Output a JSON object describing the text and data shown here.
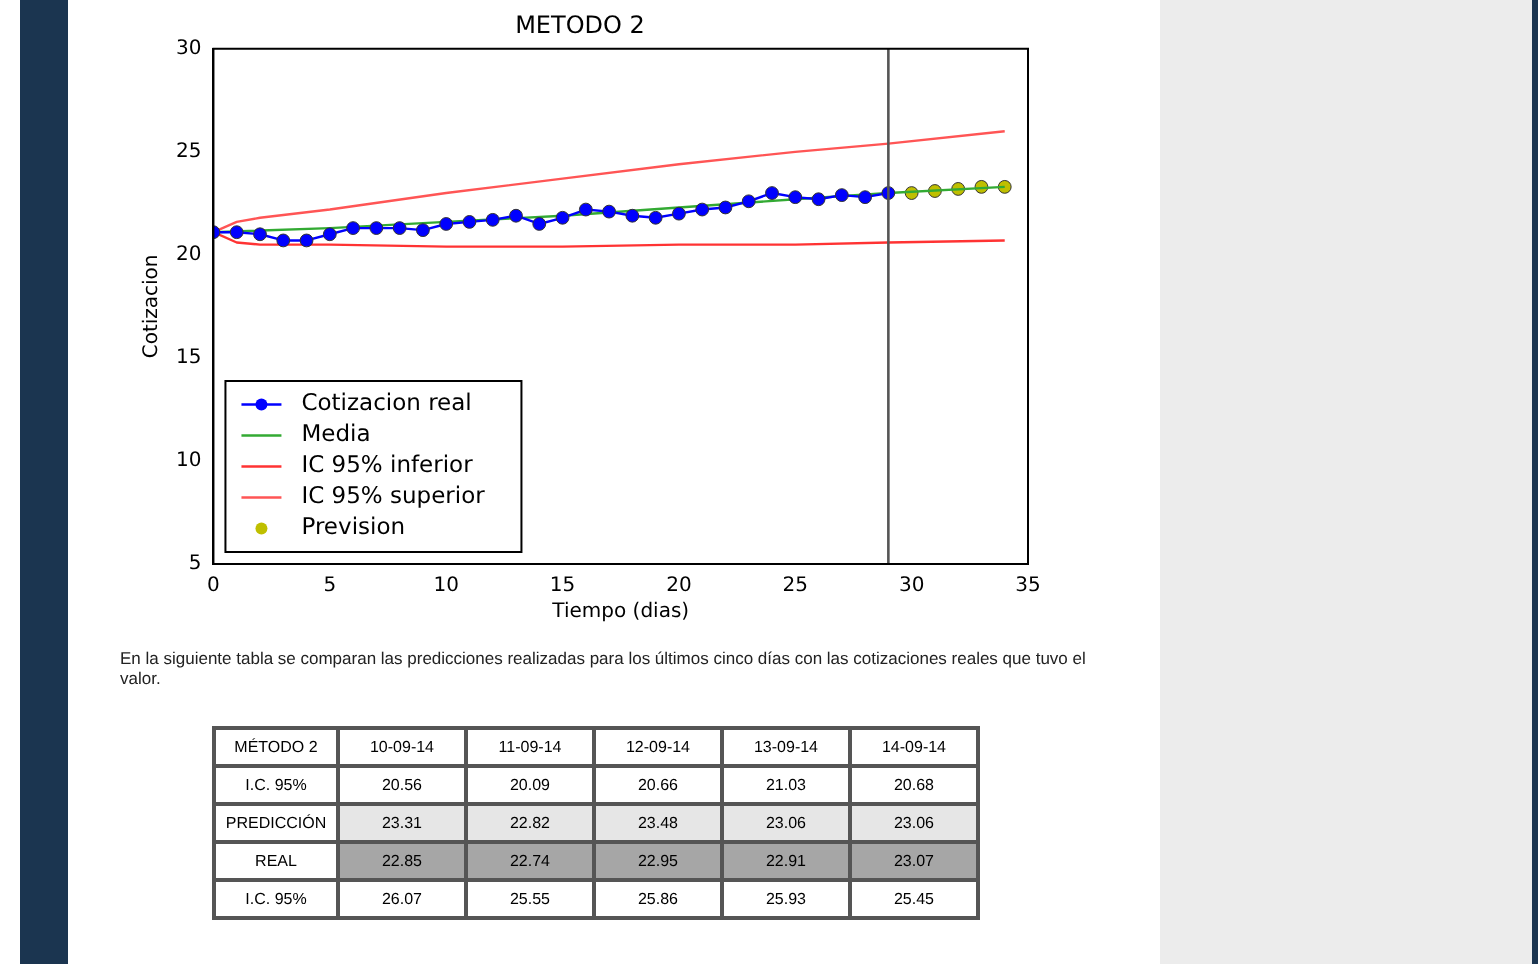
{
  "chart_data": [
    {
      "type": "line",
      "title": "METODO 2",
      "xlabel": "Tiempo (dias)",
      "ylabel": "Cotizacion",
      "xlim": [
        0,
        35
      ],
      "xticks": [
        0,
        5,
        10,
        15,
        20,
        25,
        30,
        35
      ],
      "ylim": [
        5,
        30
      ],
      "yticks": [
        5,
        10,
        15,
        20,
        25,
        30
      ],
      "grid": false,
      "legend": "bottom left",
      "ref_lines": [
        {
          "axis": "x",
          "value": 29,
          "color": "#555555"
        }
      ],
      "series": [
        {
          "name": "Cotizacion real",
          "color": "#0000ff",
          "marker": "circle",
          "line_style": "solid",
          "x": [
            0,
            1,
            2,
            3,
            4,
            5,
            6,
            7,
            8,
            9,
            10,
            11,
            12,
            13,
            14,
            15,
            16,
            17,
            18,
            19,
            20,
            21,
            22,
            23,
            24,
            25,
            26,
            27,
            28,
            29
          ],
          "values": [
            21.1,
            21.1,
            21.0,
            20.7,
            20.7,
            21.0,
            21.3,
            21.3,
            21.3,
            21.2,
            21.5,
            21.6,
            21.7,
            21.9,
            21.5,
            21.8,
            22.2,
            22.1,
            21.9,
            21.8,
            22.0,
            22.2,
            22.3,
            22.6,
            23.0,
            22.8,
            22.7,
            22.9,
            22.8,
            23.0
          ]
        },
        {
          "name": "Media",
          "color": "#33aa33",
          "marker": "none",
          "line_style": "solid",
          "x": [
            0,
            5,
            10,
            15,
            20,
            25,
            29,
            34
          ],
          "values": [
            21.1,
            21.3,
            21.6,
            21.9,
            22.3,
            22.7,
            23.0,
            23.3
          ]
        },
        {
          "name": "IC 95% inferior",
          "color": "#ff3333",
          "marker": "none",
          "line_style": "solid",
          "x": [
            0,
            1,
            2,
            5,
            10,
            15,
            20,
            25,
            29,
            34
          ],
          "values": [
            21.1,
            20.6,
            20.5,
            20.5,
            20.4,
            20.4,
            20.5,
            20.5,
            20.6,
            20.7
          ]
        },
        {
          "name": "IC 95% superior",
          "color": "#ff5555",
          "marker": "none",
          "line_style": "solid",
          "x": [
            0,
            1,
            2,
            5,
            10,
            15,
            20,
            25,
            29,
            34
          ],
          "values": [
            21.1,
            21.6,
            21.8,
            22.2,
            23.0,
            23.7,
            24.4,
            25.0,
            25.4,
            26.0
          ]
        },
        {
          "name": "Prevision",
          "type": "scatter",
          "color": "#bfbf00",
          "marker": "circle",
          "x": [
            30,
            31,
            32,
            33,
            34
          ],
          "values": [
            23.0,
            23.1,
            23.2,
            23.3,
            23.3
          ]
        }
      ]
    },
    {
      "type": "other",
      "title": "MÉTODO 2",
      "annotations": [
        "En la siguiente tabla se comparan las predicciones realizadas para los últimos cinco días con las cotizaciones reales que tuvo el valor."
      ],
      "categories": [
        "10-09-14",
        "11-09-14",
        "12-09-14",
        "13-09-14",
        "14-09-14"
      ],
      "y_categories": [
        "I.C. 95%",
        "PREDICCIÓN",
        "REAL",
        "I.C. 95%"
      ],
      "colors": [
        "#ffffff",
        "#e6e6e6",
        "#a6a6a6",
        "#ffffff"
      ],
      "cell_labels": [
        [
          "20.56",
          "20.09",
          "20.66",
          "21.03",
          "20.68"
        ],
        [
          "23.31",
          "22.82",
          "23.48",
          "23.06",
          "23.06"
        ],
        [
          "22.85",
          "22.74",
          "22.95",
          "22.91",
          "23.07"
        ],
        [
          "26.07",
          "25.55",
          "25.86",
          "25.93",
          "25.45"
        ]
      ]
    }
  ]
}
